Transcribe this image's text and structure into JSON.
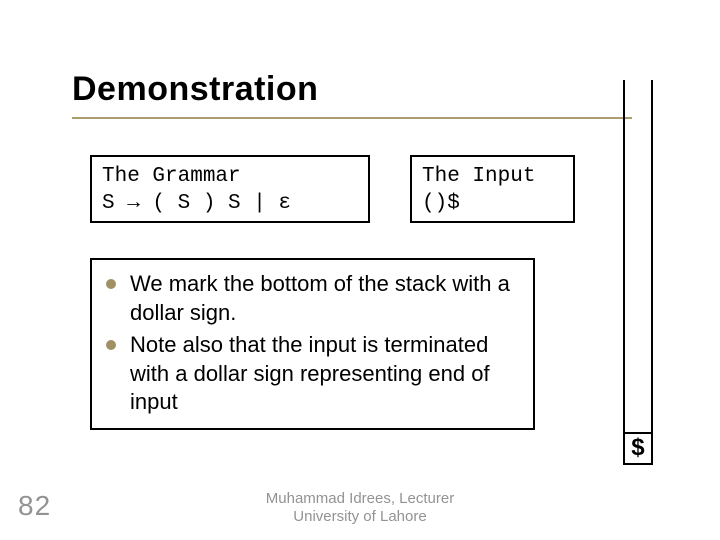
{
  "slide": {
    "title": "Demonstration",
    "page_number": "82",
    "footer_line1": "Muhammad Idrees, Lecturer",
    "footer_line2": "University of Lahore"
  },
  "grammar_box": {
    "line1": "The Grammar",
    "line2": "S → ( S ) S | ε"
  },
  "input_box": {
    "line1": "The Input",
    "line2": "()$"
  },
  "bullets": [
    "We mark the bottom of the stack with a dollar sign.",
    "Note also that the input is terminated with a dollar sign representing end of input"
  ],
  "stack": {
    "bottom_symbol": "$"
  },
  "styling": {
    "title_fontsize": 34,
    "title_color": "#000000",
    "rule_color": "#ac9b6c",
    "box_border_color": "#000000",
    "box_border_width": 2,
    "mono_font": "Courier New",
    "mono_fontsize": 21,
    "bullet_color": "#a19063",
    "bullet_fontsize": 22,
    "footer_color": "#939393",
    "footer_fontsize": 15,
    "page_num_color": "#939393",
    "page_num_fontsize": 28,
    "background_color": "#ffffff",
    "stack_symbol_fontsize": 24,
    "slide_width": 720,
    "slide_height": 540
  }
}
